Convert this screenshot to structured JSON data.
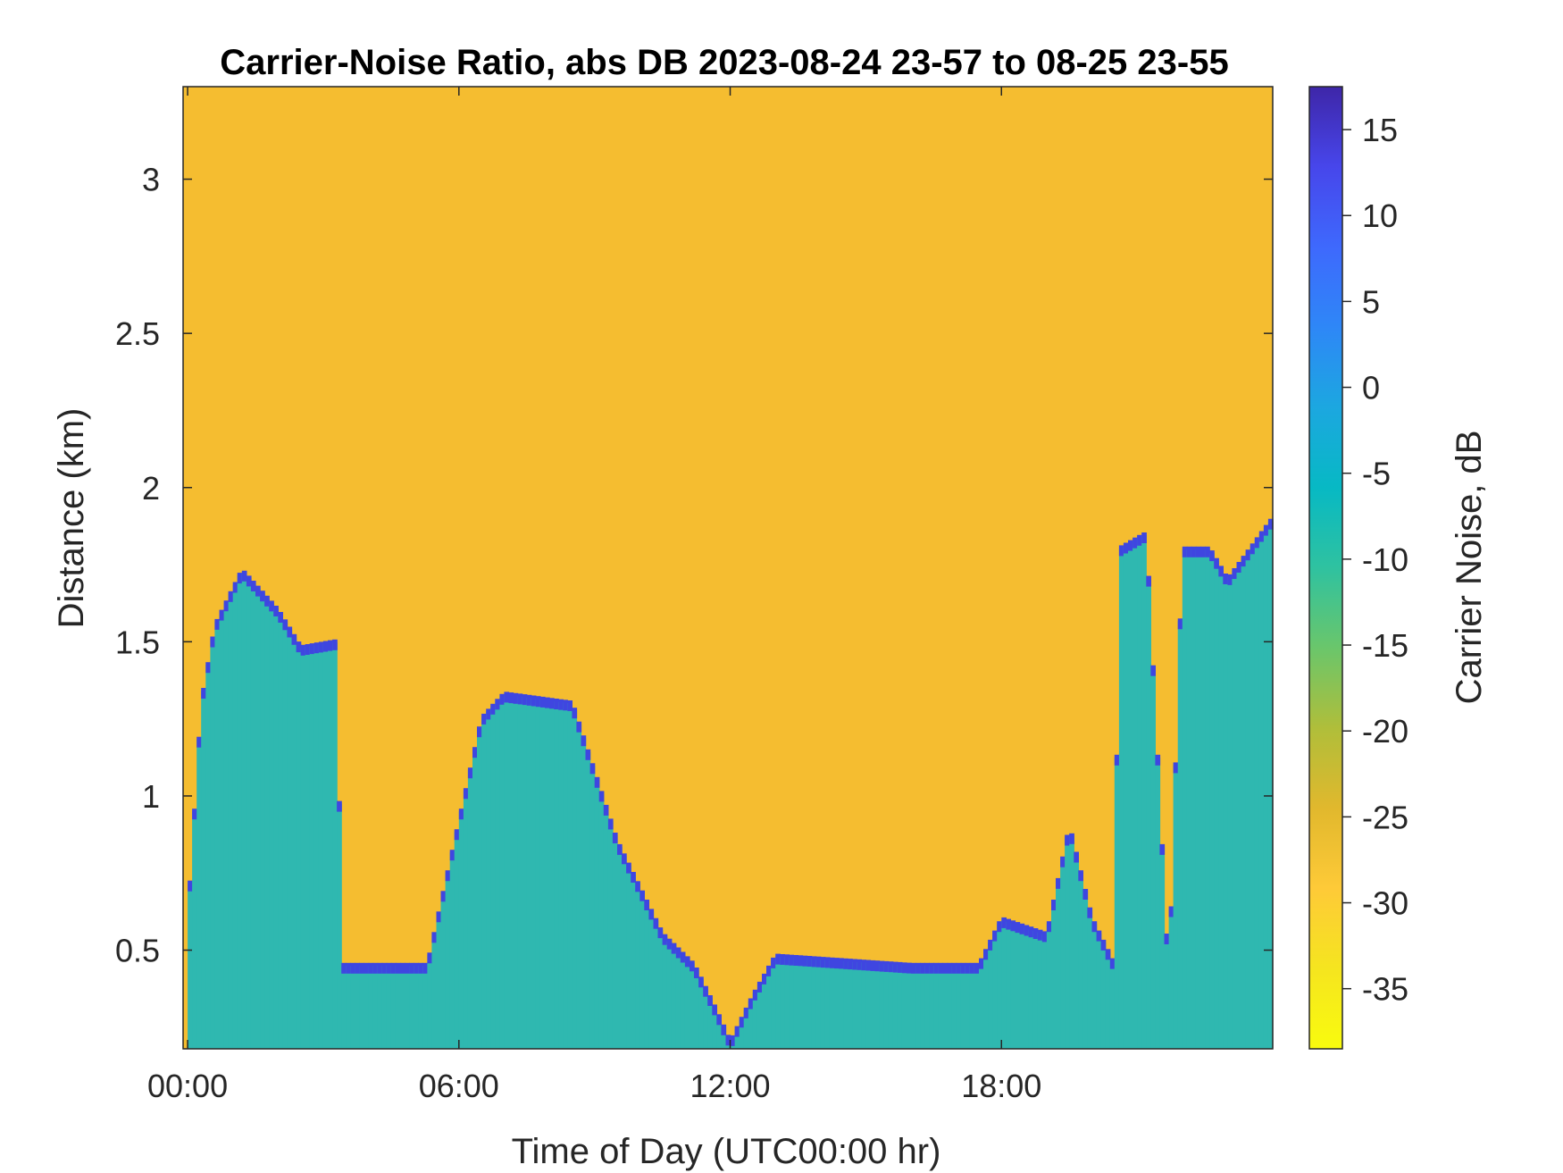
{
  "chart_data": {
    "type": "heatmap",
    "title": "Carrier-Noise Ratio, abs DB 2023-08-24 23-57 to 08-25 23-55",
    "xlabel": "Time of Day (UTC00:00 hr)",
    "ylabel": "Distance (km)",
    "colorbar_label": "Carrier Noise, dB",
    "x_ticks": [
      "00:00",
      "06:00",
      "12:00",
      "18:00"
    ],
    "x_tick_hours": [
      0,
      6,
      12,
      18
    ],
    "xlim_hours": [
      -0.1,
      24.0
    ],
    "y_ticks": [
      "0.5",
      "1",
      "1.5",
      "2",
      "2.5",
      "3"
    ],
    "y_tick_values": [
      0.5,
      1.0,
      1.5,
      2.0,
      2.5,
      3.0
    ],
    "ylim": [
      0.18,
      3.3
    ],
    "colorbar_ticks": [
      "15",
      "10",
      "5",
      "0",
      "-5",
      "-10",
      "-15",
      "-20",
      "-25",
      "-30",
      "-35"
    ],
    "colorbar_tick_values": [
      15,
      10,
      5,
      0,
      -5,
      -10,
      -15,
      -20,
      -25,
      -30,
      -35
    ],
    "clim": [
      -38.5,
      17.5
    ],
    "background_value_db": -30,
    "boundary_layer_top_km": [
      {
        "hour": 0.0,
        "km": 0.6
      },
      {
        "hour": 0.3,
        "km": 1.3
      },
      {
        "hour": 0.6,
        "km": 1.55
      },
      {
        "hour": 1.2,
        "km": 1.73
      },
      {
        "hour": 2.0,
        "km": 1.6
      },
      {
        "hour": 2.5,
        "km": 1.48
      },
      {
        "hour": 3.3,
        "km": 1.5
      },
      {
        "hour": 3.4,
        "km": 0.45
      },
      {
        "hour": 5.3,
        "km": 0.45
      },
      {
        "hour": 6.5,
        "km": 1.25
      },
      {
        "hour": 7.0,
        "km": 1.33
      },
      {
        "hour": 8.5,
        "km": 1.3
      },
      {
        "hour": 9.5,
        "km": 0.85
      },
      {
        "hour": 10.5,
        "km": 0.55
      },
      {
        "hour": 11.2,
        "km": 0.45
      },
      {
        "hour": 11.7,
        "km": 0.3
      },
      {
        "hour": 12.0,
        "km": 0.2
      },
      {
        "hour": 12.5,
        "km": 0.35
      },
      {
        "hour": 13.0,
        "km": 0.48
      },
      {
        "hour": 16.0,
        "km": 0.45
      },
      {
        "hour": 17.5,
        "km": 0.45
      },
      {
        "hour": 18.0,
        "km": 0.6
      },
      {
        "hour": 19.0,
        "km": 0.55
      },
      {
        "hour": 19.5,
        "km": 0.9
      },
      {
        "hour": 20.0,
        "km": 0.6
      },
      {
        "hour": 20.5,
        "km": 0.45
      },
      {
        "hour": 20.6,
        "km": 1.8
      },
      {
        "hour": 21.2,
        "km": 1.85
      },
      {
        "hour": 21.7,
        "km": 0.4
      },
      {
        "hour": 22.0,
        "km": 1.8
      },
      {
        "hour": 22.6,
        "km": 1.8
      },
      {
        "hour": 23.0,
        "km": 1.7
      },
      {
        "hour": 24.0,
        "km": 1.9
      }
    ],
    "colors": {
      "background": "#f5bd30",
      "aerosol_layer": "#2fb8b0",
      "layer_top": "#3f46e0",
      "colormap": [
        "#3e26a8",
        "#4746eb",
        "#3e69fd",
        "#2e87f7",
        "#1ca7e0",
        "#07b9c4",
        "#2fc2a0",
        "#6ac66b",
        "#b0be3a",
        "#e1b82d",
        "#feca38",
        "#f5e51f",
        "#f9fb0e"
      ]
    }
  }
}
